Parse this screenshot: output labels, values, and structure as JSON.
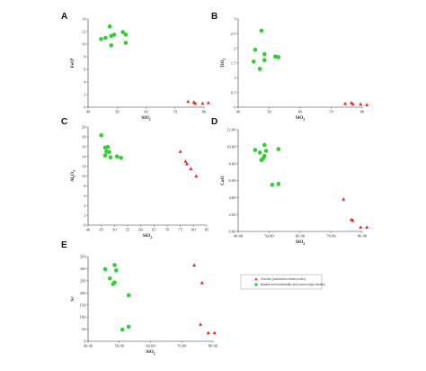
{
  "legend": {
    "entries": [
      {
        "label": "Granites (subduction-related rocks)",
        "color": "#e8262a",
        "marker": "triangle"
      },
      {
        "label": "Basalts and metabasalts (mid-ocean-ridge basalts)",
        "color": "#2fcf2f",
        "marker": "circle"
      }
    ]
  },
  "chart_data": [
    {
      "type": "scatter",
      "panel": "A",
      "xlabel": "SiO2",
      "ylabel": "FeOt",
      "xlim": [
        40,
        80
      ],
      "ylim": [
        0,
        14
      ],
      "xticks": [
        "40",
        "50",
        "60",
        "70",
        "80"
      ],
      "yticks": [
        "0",
        "2",
        "4",
        "6",
        "8",
        "10",
        "12",
        "14"
      ],
      "series": [
        {
          "marker": "circle",
          "color": "#2fcf2f",
          "points": [
            [
              47.5,
              12.8
            ],
            [
              52,
              11.9
            ],
            [
              49,
              11.5
            ],
            [
              53,
              11.5
            ],
            [
              48,
              11.3
            ],
            [
              46,
              11
            ],
            [
              44.5,
              10.8
            ],
            [
              53,
              10.2
            ],
            [
              48,
              9.8
            ]
          ]
        },
        {
          "marker": "triangle",
          "color": "#e8262a",
          "points": [
            [
              74.5,
              0.9
            ],
            [
              76.5,
              0.8
            ],
            [
              77,
              0.6
            ],
            [
              79.5,
              0.6
            ],
            [
              81.5,
              0.7
            ]
          ]
        }
      ]
    },
    {
      "type": "scatter",
      "panel": "B",
      "xlabel": "SiO2",
      "ylabel": "TiO2",
      "xlim": [
        40,
        80
      ],
      "ylim": [
        0,
        3
      ],
      "xticks": [
        "40",
        "50",
        "60",
        "70",
        "80"
      ],
      "yticks": [
        "0",
        "0.5",
        "1",
        "1.5",
        "2",
        "2.5",
        "3"
      ],
      "series": [
        {
          "marker": "circle",
          "color": "#2fcf2f",
          "points": [
            [
              47.5,
              2.6
            ],
            [
              45.5,
              1.95
            ],
            [
              48.5,
              1.8
            ],
            [
              52,
              1.72
            ],
            [
              53,
              1.7
            ],
            [
              48.5,
              1.6
            ],
            [
              45,
              1.55
            ],
            [
              47,
              1.3
            ]
          ]
        },
        {
          "marker": "triangle",
          "color": "#e8262a",
          "points": [
            [
              74.5,
              0.12
            ],
            [
              76.5,
              0.15
            ],
            [
              77,
              0.1
            ],
            [
              79.5,
              0.1
            ],
            [
              81.5,
              0.08
            ]
          ]
        }
      ]
    },
    {
      "type": "scatter",
      "panel": "C",
      "xlabel": "SiO2",
      "ylabel": "Al2O3",
      "xlim": [
        40,
        85
      ],
      "ylim": [
        0,
        20
      ],
      "xticks": [
        "40",
        "45",
        "50",
        "55",
        "60",
        "65",
        "70",
        "75",
        "80",
        "85"
      ],
      "yticks": [
        "0",
        "2",
        "4",
        "6",
        "8",
        "10",
        "12",
        "14",
        "16",
        "18",
        "20"
      ],
      "series": [
        {
          "marker": "circle",
          "color": "#2fcf2f",
          "points": [
            [
              45,
              18.3
            ],
            [
              46.5,
              15.8
            ],
            [
              47.5,
              15.9
            ],
            [
              47,
              15
            ],
            [
              48,
              14.9
            ],
            [
              46.5,
              14.2
            ],
            [
              48.5,
              13.8
            ],
            [
              51,
              14
            ],
            [
              52.5,
              13.7
            ]
          ]
        },
        {
          "marker": "triangle",
          "color": "#e8262a",
          "points": [
            [
              75,
              15
            ],
            [
              77,
              13
            ],
            [
              77.5,
              12.5
            ],
            [
              79,
              11.5
            ],
            [
              81,
              10
            ]
          ]
        }
      ]
    },
    {
      "type": "scatter",
      "panel": "D",
      "xlabel": "SiO2",
      "ylabel": "CaO",
      "xlim": [
        40,
        80
      ],
      "ylim": [
        0,
        12
      ],
      "xticks": [
        "40.00",
        "50.00",
        "60.00",
        "70.00",
        "80.00"
      ],
      "yticks": [
        "0.00",
        "2.00",
        "4.00",
        "6.00",
        "8.00",
        "10.00",
        "12.00"
      ],
      "series": [
        {
          "marker": "circle",
          "color": "#2fcf2f",
          "points": [
            [
              48.5,
              10.2
            ],
            [
              53,
              9.7
            ],
            [
              45.5,
              9.6
            ],
            [
              49,
              9.5
            ],
            [
              47,
              9.3
            ],
            [
              48.5,
              8.9
            ],
            [
              48,
              8.6
            ],
            [
              47.5,
              8.4
            ],
            [
              53,
              5.6
            ],
            [
              51,
              5.5
            ]
          ]
        },
        {
          "marker": "triangle",
          "color": "#e8262a",
          "points": [
            [
              74,
              3.8
            ],
            [
              76.5,
              1.4
            ],
            [
              77,
              1.3
            ],
            [
              79.5,
              0.5
            ],
            [
              81.5,
              0.5
            ]
          ]
        }
      ]
    },
    {
      "type": "scatter",
      "panel": "E",
      "xlabel": "SiO2",
      "ylabel": "Sr",
      "xlim": [
        40,
        80
      ],
      "ylim": [
        0,
        350
      ],
      "xticks": [
        "40.00",
        "50.00",
        "60.00",
        "70.00",
        "80.00"
      ],
      "yticks": [
        "0",
        "50",
        "100",
        "150",
        "200",
        "250",
        "300",
        "350"
      ],
      "series": [
        {
          "marker": "circle",
          "color": "#2fcf2f",
          "points": [
            [
              48.5,
              315
            ],
            [
              45.5,
              298
            ],
            [
              49,
              293
            ],
            [
              47,
              260
            ],
            [
              48.5,
              243
            ],
            [
              48,
              237
            ],
            [
              53,
              190
            ],
            [
              53,
              60
            ],
            [
              51,
              48
            ]
          ]
        },
        {
          "marker": "triangle",
          "color": "#e8262a",
          "points": [
            [
              74,
              315
            ],
            [
              76.5,
              242
            ],
            [
              76,
              70
            ],
            [
              78.5,
              35
            ],
            [
              80.5,
              35
            ]
          ]
        }
      ]
    }
  ]
}
